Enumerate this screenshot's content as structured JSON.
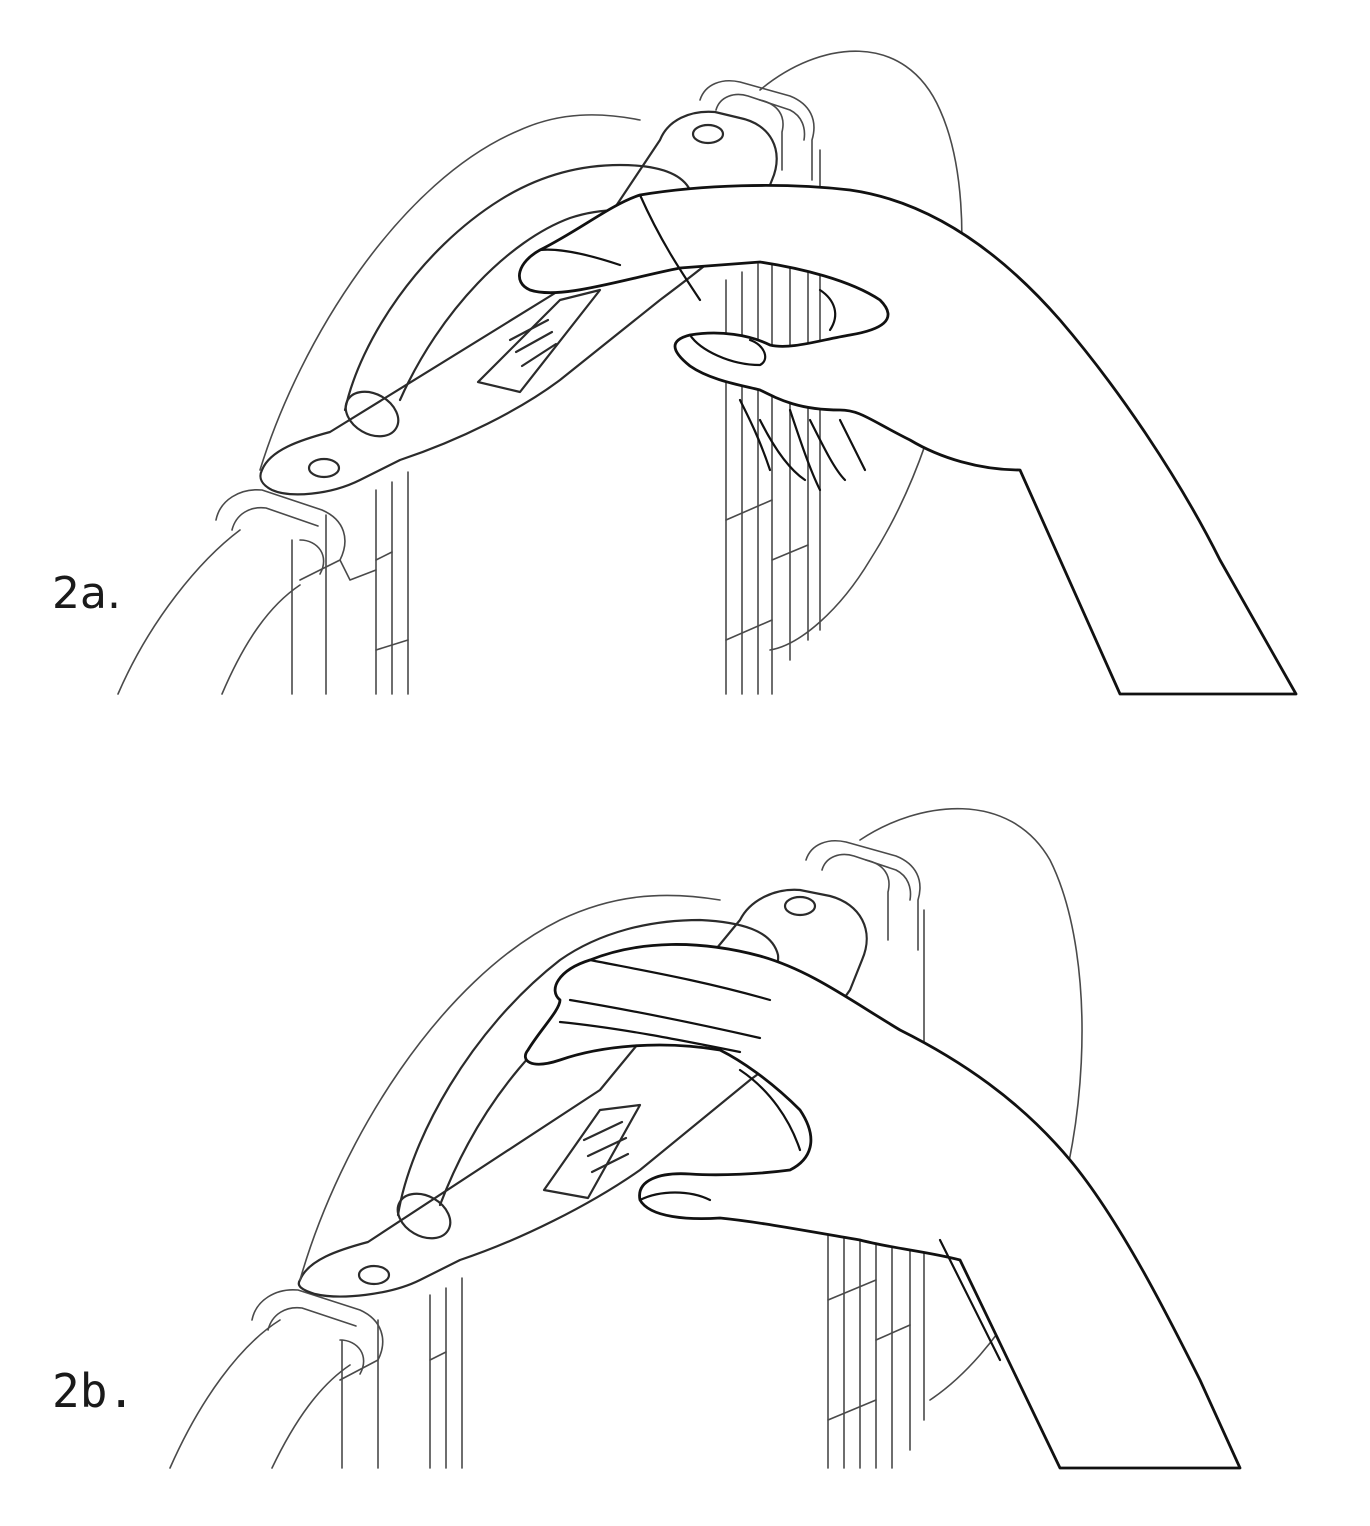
{
  "figure": {
    "panels": [
      {
        "label": "2a."
      },
      {
        "label": "2b."
      }
    ]
  }
}
